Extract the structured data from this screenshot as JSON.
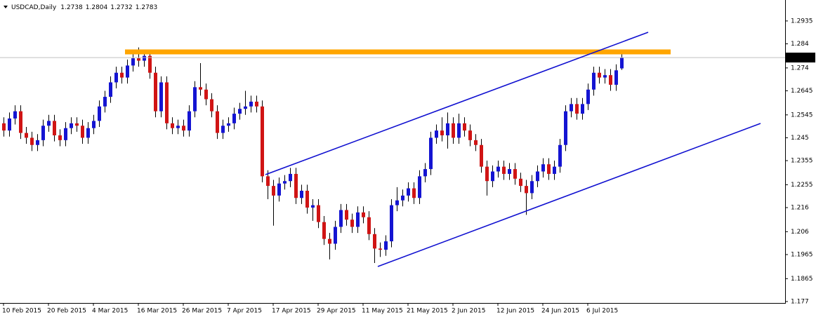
{
  "chart_data": {
    "type": "candlestick",
    "symbol": "USDCAD,Daily",
    "up_color": "#1414d2",
    "down_color": "#d01414",
    "categories": [
      "10 Feb 2015",
      null,
      null,
      null,
      null,
      null,
      null,
      null,
      "20 Feb 2015",
      null,
      null,
      null,
      null,
      null,
      null,
      null,
      "4 Mar 2015",
      null,
      null,
      null,
      null,
      null,
      null,
      null,
      "16 Mar 2015",
      null,
      null,
      null,
      null,
      null,
      null,
      null,
      "26 Mar 2015",
      null,
      null,
      null,
      null,
      null,
      null,
      null,
      "7 Apr 2015",
      null,
      null,
      null,
      null,
      null,
      null,
      null,
      "17 Apr 2015",
      null,
      null,
      null,
      null,
      null,
      null,
      null,
      "29 Apr 2015",
      null,
      null,
      null,
      null,
      null,
      null,
      null,
      "11 May 2015",
      null,
      null,
      null,
      null,
      null,
      null,
      null,
      "21 May 2015",
      null,
      null,
      null,
      null,
      null,
      null,
      null,
      "2 Jun 2015",
      null,
      null,
      null,
      null,
      null,
      null,
      null,
      "12 Jun 2015",
      null,
      null,
      null,
      null,
      null,
      null,
      null,
      "24 Jun 2015",
      null,
      null,
      null,
      null,
      null,
      null,
      null,
      "6 Jul 2015",
      null,
      null,
      null,
      null,
      null,
      null
    ],
    "open": [
      1.251,
      1.248,
      1.253,
      1.256,
      1.247,
      1.245,
      1.242,
      1.244,
      1.25,
      1.252,
      1.246,
      1.244,
      1.249,
      1.251,
      1.25,
      1.245,
      1.249,
      1.252,
      1.258,
      1.262,
      1.268,
      1.272,
      1.27,
      1.275,
      1.278,
      1.277,
      1.279,
      1.272,
      1.256,
      1.268,
      1.251,
      1.249,
      1.25,
      1.248,
      1.256,
      1.266,
      1.265,
      1.261,
      1.256,
      1.247,
      1.25,
      1.251,
      1.255,
      1.257,
      1.258,
      1.26,
      1.258,
      1.229,
      1.225,
      1.221,
      1.226,
      1.227,
      1.23,
      1.22,
      1.223,
      1.216,
      1.217,
      1.21,
      1.203,
      1.201,
      1.208,
      1.215,
      1.211,
      1.208,
      1.214,
      1.212,
      1.205,
      1.199,
      1.1985,
      1.202,
      1.217,
      1.219,
      1.221,
      1.224,
      1.22,
      1.229,
      1.232,
      1.245,
      1.248,
      1.246,
      1.251,
      1.245,
      1.251,
      1.248,
      1.244,
      1.242,
      1.233,
      1.227,
      1.231,
      1.233,
      1.23,
      1.232,
      1.228,
      1.225,
      1.222,
      1.227,
      1.231,
      1.234,
      1.23,
      1.233,
      1.242,
      1.256,
      1.259,
      1.255,
      1.259,
      1.265,
      1.272,
      1.27,
      1.271,
      1.267,
      1.2738
    ],
    "high": [
      1.2535,
      1.2555,
      1.2585,
      1.2585,
      1.2495,
      1.2475,
      1.2465,
      1.2525,
      1.2545,
      1.2545,
      1.2485,
      1.2515,
      1.2535,
      1.2535,
      1.2525,
      1.2515,
      1.2545,
      1.2605,
      1.2645,
      1.2705,
      1.2745,
      1.2745,
      1.2775,
      1.2805,
      1.2825,
      1.2815,
      1.2815,
      1.2745,
      1.2705,
      1.2705,
      1.2535,
      1.2525,
      1.2525,
      1.2585,
      1.2685,
      1.276,
      1.2675,
      1.2635,
      1.2585,
      1.2525,
      1.2535,
      1.2575,
      1.2595,
      1.2645,
      1.2625,
      1.2625,
      1.2605,
      1.2315,
      1.2275,
      1.2285,
      1.2295,
      1.2325,
      1.2325,
      1.2255,
      1.2255,
      1.2195,
      1.2195,
      1.2125,
      1.2055,
      1.2105,
      1.2175,
      1.2175,
      1.2135,
      1.2165,
      1.2165,
      1.2145,
      1.2075,
      1.2015,
      1.2045,
      1.2195,
      1.2245,
      1.2235,
      1.2265,
      1.2265,
      1.2315,
      1.2345,
      1.2475,
      1.2505,
      1.2535,
      1.2555,
      1.2535,
      1.255,
      1.2535,
      1.2505,
      1.2465,
      1.2445,
      1.2355,
      1.2335,
      1.2355,
      1.2355,
      1.2345,
      1.2345,
      1.2305,
      1.2275,
      1.2295,
      1.2335,
      1.2365,
      1.2365,
      1.2355,
      1.2445,
      1.2585,
      1.2615,
      1.2615,
      1.2615,
      1.2675,
      1.2745,
      1.2745,
      1.2735,
      1.2735,
      1.2755,
      1.2804
    ],
    "low": [
      1.2455,
      1.2455,
      1.2505,
      1.2445,
      1.2425,
      1.2395,
      1.2395,
      1.2415,
      1.2475,
      1.2435,
      1.2415,
      1.2415,
      1.2465,
      1.2475,
      1.2425,
      1.2425,
      1.2465,
      1.2495,
      1.2555,
      1.2595,
      1.2655,
      1.2675,
      1.2675,
      1.2725,
      1.2745,
      1.2745,
      1.2695,
      1.2535,
      1.2535,
      1.2485,
      1.2465,
      1.2465,
      1.2455,
      1.2455,
      1.2535,
      1.2625,
      1.2585,
      1.2535,
      1.2445,
      1.2445,
      1.2475,
      1.2485,
      1.2525,
      1.2545,
      1.2555,
      1.2555,
      1.2265,
      1.2195,
      1.2085,
      1.2185,
      1.2235,
      1.2245,
      1.2175,
      1.2175,
      1.2135,
      1.2105,
      1.2075,
      1.2005,
      1.1945,
      1.1985,
      1.2055,
      1.2085,
      1.2055,
      1.2055,
      1.2095,
      1.2025,
      1.193,
      1.1955,
      1.196,
      1.1995,
      1.2145,
      1.2165,
      1.2185,
      1.2175,
      1.2175,
      1.2265,
      1.2295,
      1.2425,
      1.2435,
      1.2405,
      1.2425,
      1.2425,
      1.2455,
      1.2415,
      1.2395,
      1.2305,
      1.221,
      1.2245,
      1.2285,
      1.2275,
      1.2275,
      1.2255,
      1.2225,
      1.213,
      1.2195,
      1.2245,
      1.2285,
      1.2275,
      1.2275,
      1.2305,
      1.2395,
      1.2535,
      1.2525,
      1.2525,
      1.2565,
      1.2625,
      1.2675,
      1.2675,
      1.2645,
      1.2645,
      1.2732
    ],
    "close": [
      1.248,
      1.253,
      1.256,
      1.247,
      1.245,
      1.242,
      1.244,
      1.25,
      1.252,
      1.246,
      1.244,
      1.249,
      1.251,
      1.25,
      1.245,
      1.249,
      1.252,
      1.258,
      1.262,
      1.268,
      1.272,
      1.27,
      1.275,
      1.278,
      1.277,
      1.279,
      1.272,
      1.256,
      1.268,
      1.251,
      1.249,
      1.25,
      1.248,
      1.256,
      1.266,
      1.265,
      1.261,
      1.256,
      1.247,
      1.25,
      1.251,
      1.255,
      1.257,
      1.258,
      1.26,
      1.258,
      1.229,
      1.225,
      1.221,
      1.226,
      1.227,
      1.23,
      1.22,
      1.223,
      1.216,
      1.217,
      1.21,
      1.203,
      1.201,
      1.208,
      1.215,
      1.211,
      1.208,
      1.214,
      1.212,
      1.205,
      1.199,
      1.1985,
      1.202,
      1.217,
      1.219,
      1.221,
      1.224,
      1.22,
      1.229,
      1.232,
      1.245,
      1.248,
      1.246,
      1.251,
      1.245,
      1.251,
      1.248,
      1.244,
      1.242,
      1.233,
      1.227,
      1.231,
      1.233,
      1.23,
      1.232,
      1.228,
      1.225,
      1.222,
      1.227,
      1.231,
      1.234,
      1.23,
      1.233,
      1.242,
      1.256,
      1.259,
      1.255,
      1.259,
      1.265,
      1.272,
      1.27,
      1.271,
      1.267,
      1.273,
      1.2783
    ],
    "ylim": [
      1.1764,
      1.3022
    ],
    "yticks": [
      1.2935,
      1.284,
      1.274,
      1.2645,
      1.2545,
      1.245,
      1.2355,
      1.2255,
      1.216,
      1.206,
      1.1965,
      1.1865,
      1.177
    ]
  }
}
